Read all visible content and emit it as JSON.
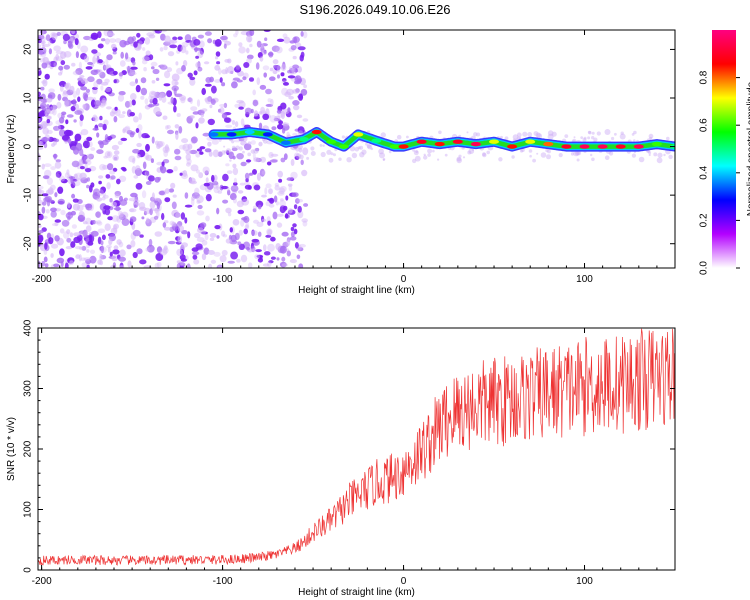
{
  "title": "S196.2026.049.10.06.E26",
  "chart_data": [
    {
      "type": "heatmap",
      "xlabel": "Height of straight line (km)",
      "ylabel": "Frequency (Hz)",
      "xlim": [
        -202,
        150
      ],
      "ylim": [
        -25,
        24
      ],
      "xticks": [
        -200,
        -100,
        0,
        100
      ],
      "xtick_labels": [
        "-200",
        "-100",
        "0",
        "100"
      ],
      "yticks": [
        20,
        10,
        0,
        -10,
        -20
      ],
      "ytick_labels": [
        "20",
        "10",
        "0",
        "-10",
        "-20"
      ],
      "colorbar": {
        "label": "Normalized spectral amplitude",
        "range": [
          0,
          1
        ],
        "ticks": [
          0.0,
          0.2,
          0.4,
          0.6,
          0.8
        ],
        "tick_labels": [
          "0.0",
          "0.2",
          "0.4",
          "0.6",
          "0.8"
        ],
        "colors": [
          "#ffffff",
          "#b300ff",
          "#0000ff",
          "#00ffff",
          "#00ff00",
          "#ffff00",
          "#ff0000",
          "#ff0080"
        ]
      },
      "ridge": {
        "name": "dominant frequency",
        "x": [
          -105,
          -95,
          -85,
          -75,
          -65,
          -55,
          -48,
          -40,
          -33,
          -25,
          -15,
          -5,
          0,
          10,
          20,
          30,
          40,
          50,
          60,
          70,
          80,
          90,
          100,
          110,
          120,
          130,
          140,
          150
        ],
        "freq": [
          2.5,
          2.5,
          3,
          2.5,
          0.8,
          1.5,
          3,
          1,
          0,
          2.5,
          1.2,
          0,
          0,
          1,
          0.5,
          1,
          0.5,
          1,
          0,
          1,
          0.5,
          0,
          0,
          0,
          0,
          0,
          0.5,
          0
        ],
        "amplitude": [
          0.35,
          0.3,
          0.4,
          0.3,
          0.35,
          0.5,
          0.85,
          0.6,
          0.6,
          0.7,
          0.5,
          0.6,
          0.85,
          0.9,
          0.85,
          0.9,
          0.95,
          0.7,
          0.85,
          0.7,
          0.8,
          0.9,
          0.95,
          0.95,
          0.9,
          0.95,
          0.6,
          0.5
        ]
      },
      "noise_region_x": [
        -202,
        -62
      ]
    },
    {
      "type": "line",
      "xlabel": "Height of straight line (km)",
      "ylabel": "SNR (10 * v/v)",
      "xlim": [
        -202,
        150
      ],
      "ylim": [
        0,
        400
      ],
      "xticks": [
        -200,
        -100,
        0,
        100
      ],
      "xtick_labels": [
        "-200",
        "-100",
        "0",
        "100"
      ],
      "yticks": [
        0,
        100,
        200,
        300,
        400
      ],
      "ytick_labels": [
        "0",
        "100",
        "200",
        "300",
        "400"
      ],
      "series": [
        {
          "name": "SNR",
          "color": "#ee3333",
          "x": [
            -200,
            -180,
            -160,
            -140,
            -120,
            -100,
            -90,
            -80,
            -70,
            -65,
            -60,
            -55,
            -50,
            -45,
            -40,
            -35,
            -30,
            -25,
            -20,
            -15,
            -10,
            -5,
            0,
            5,
            10,
            15,
            20,
            25,
            30,
            40,
            50,
            60,
            70,
            80,
            90,
            100,
            110,
            120,
            130,
            140,
            150
          ],
          "y": [
            15,
            16,
            15,
            15,
            16,
            16,
            18,
            20,
            25,
            30,
            35,
            45,
            60,
            70,
            80,
            95,
            110,
            120,
            130,
            140,
            145,
            150,
            160,
            175,
            190,
            210,
            230,
            245,
            255,
            265,
            270,
            275,
            280,
            285,
            290,
            295,
            298,
            300,
            305,
            310,
            315
          ]
        }
      ]
    }
  ]
}
